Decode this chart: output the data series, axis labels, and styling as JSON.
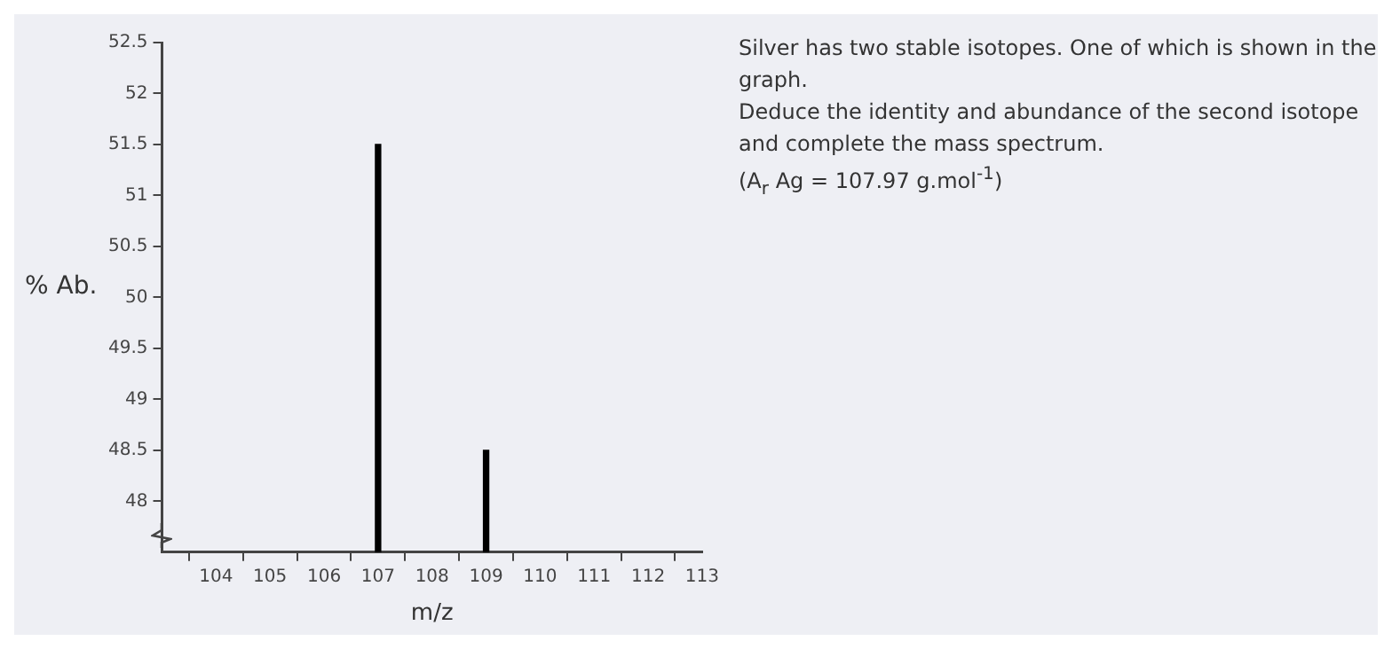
{
  "chart_data": {
    "type": "bar",
    "x": [
      107,
      109
    ],
    "values": [
      51.5,
      48.5
    ],
    "color": "#000000",
    "xlim": [
      103,
      113
    ],
    "xticks": [
      104,
      105,
      106,
      107,
      108,
      109,
      110,
      111,
      112,
      113
    ],
    "ylim": [
      47.5,
      52.5
    ],
    "yticks": [
      48,
      48.5,
      49,
      49.5,
      50,
      50.5,
      51,
      51.5,
      52,
      52.5
    ],
    "xlabel": "m/z",
    "ylabel": "% Ab.",
    "grid": false,
    "legend": false,
    "annotations": [
      "Silver has two stable isotopes. One of which is shown in the graph.",
      "Deduce the identity and abundance of the second isotope and complete the mass spectrum.",
      "(A$_{r}$ Ag = 107.97 g.mol$^{-1}$)"
    ]
  }
}
